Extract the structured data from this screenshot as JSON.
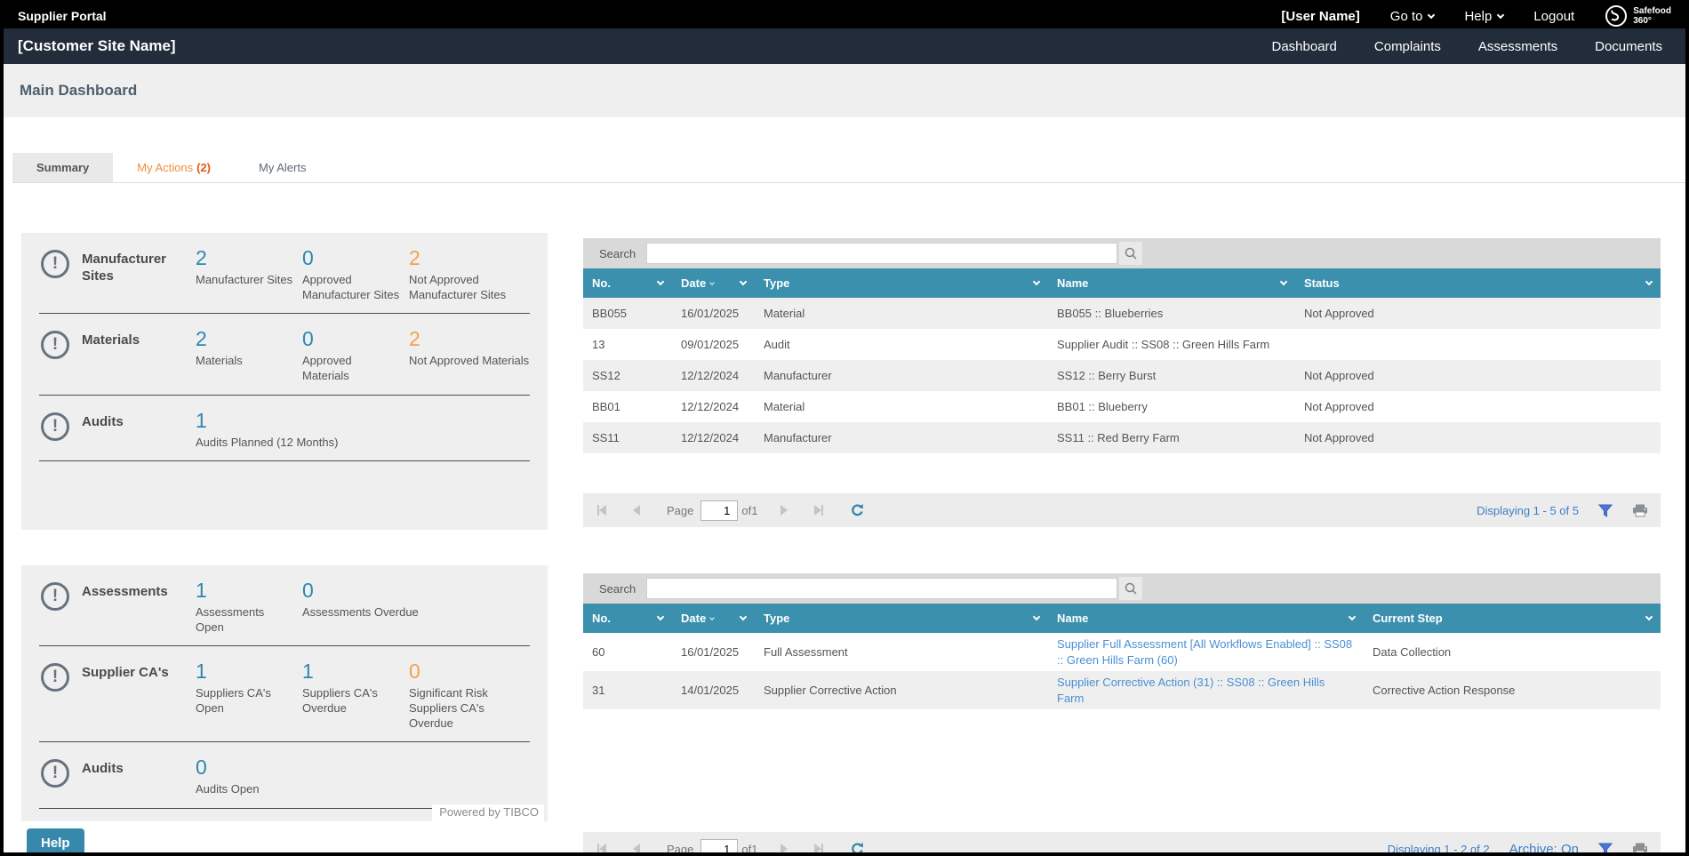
{
  "topbar": {
    "title": "Supplier Portal",
    "user": "[User Name]",
    "goto_label": "Go to",
    "help_label": "Help",
    "logout_label": "Logout",
    "brand_line1": "Safefood",
    "brand_line2": "360°"
  },
  "nav": {
    "site_name": "[Customer Site Name]",
    "items": [
      "Dashboard",
      "Complaints",
      "Assessments",
      "Documents"
    ]
  },
  "page": {
    "title": "Main Dashboard",
    "help_button": "Help"
  },
  "tabs": [
    {
      "label": "Summary",
      "active": true
    },
    {
      "label": "My Actions",
      "badge": "(2)",
      "orange": true
    },
    {
      "label": "My Alerts"
    }
  ],
  "colors": {
    "header_teal": "#3b90ae",
    "stat_blue": "#2f87ac",
    "stat_orange": "#f2a14d",
    "link_blue": "#4a90d2",
    "help_teal": "#3789ab",
    "navbar_navy": "#222c3a"
  },
  "summary_panels": [
    {
      "sections": [
        {
          "title": "Manufacturer Sites",
          "stats": [
            {
              "value": "2",
              "label": "Manufacturer Sites",
              "color": "blue"
            },
            {
              "value": "0",
              "label": "Approved Manufacturer Sites",
              "color": "blue"
            },
            {
              "value": "2",
              "label": "Not Approved Manufacturer Sites",
              "color": "orange"
            }
          ]
        },
        {
          "title": "Materials",
          "stats": [
            {
              "value": "2",
              "label": "Materials",
              "color": "blue"
            },
            {
              "value": "0",
              "label": "Approved Materials",
              "color": "blue"
            },
            {
              "value": "2",
              "label": "Not Approved Materials",
              "color": "orange"
            }
          ]
        },
        {
          "title": "Audits",
          "stats": [
            {
              "value": "1",
              "label": "Audits Planned (12 Months)",
              "color": "blue"
            }
          ]
        }
      ],
      "footer": null
    },
    {
      "sections": [
        {
          "title": "Assessments",
          "stats": [
            {
              "value": "1",
              "label": "Assessments Open",
              "color": "blue"
            },
            {
              "value": "0",
              "label": "Assessments Overdue",
              "color": "blue"
            }
          ]
        },
        {
          "title": "Supplier CA's",
          "stats": [
            {
              "value": "1",
              "label": "Suppliers CA's Open",
              "color": "blue"
            },
            {
              "value": "1",
              "label": "Suppliers CA's Overdue",
              "color": "blue"
            },
            {
              "value": "0",
              "label": "Significant Risk Suppliers CA's Overdue",
              "color": "orange"
            }
          ]
        },
        {
          "title": "Audits",
          "stats": [
            {
              "value": "0",
              "label": "Audits Open",
              "color": "blue"
            }
          ]
        }
      ],
      "footer": "Powered by TIBCO"
    }
  ],
  "tables": [
    {
      "search_label": "Search",
      "search_value": "",
      "columns": [
        {
          "label": "No.",
          "sorted": false
        },
        {
          "label": "Date",
          "sorted": true
        },
        {
          "label": "Type",
          "sorted": false
        },
        {
          "label": "Name",
          "sorted": false
        },
        {
          "label": "Status",
          "sorted": false
        }
      ],
      "name_is_link": false,
      "stripe_offset": 0,
      "rows": [
        {
          "cells": [
            "BB055",
            "16/01/2025",
            "Material",
            "BB055 :: Blueberries",
            "Not Approved"
          ]
        },
        {
          "cells": [
            "13",
            "09/01/2025",
            "Audit",
            "Supplier Audit :: SS08 :: Green Hills Farm",
            ""
          ]
        },
        {
          "cells": [
            "SS12",
            "12/12/2024",
            "Manufacturer",
            "SS12 :: Berry Burst",
            "Not Approved"
          ]
        },
        {
          "cells": [
            "BB01",
            "12/12/2024",
            "Material",
            "BB01 :: Blueberry",
            "Not Approved"
          ]
        },
        {
          "cells": [
            "SS11",
            "12/12/2024",
            "Manufacturer",
            "SS11 :: Red Berry Farm",
            "Not Approved"
          ]
        }
      ],
      "pager": {
        "page_label": "Page",
        "page_value": "1",
        "of_label": "of1",
        "displaying": "Displaying 1 - 5 of 5",
        "archive": null
      }
    },
    {
      "search_label": "Search",
      "search_value": "",
      "columns": [
        {
          "label": "No.",
          "sorted": false
        },
        {
          "label": "Date",
          "sorted": true
        },
        {
          "label": "Type",
          "sorted": false
        },
        {
          "label": "Name",
          "sorted": false
        },
        {
          "label": "Current Step",
          "sorted": false
        }
      ],
      "name_is_link": true,
      "stripe_offset": 1,
      "rows": [
        {
          "cells": [
            "60",
            "16/01/2025",
            "Full Assessment",
            "Supplier Full Assessment [All Workflows Enabled] :: SS08 :: Green Hills Farm (60)",
            "Data Collection"
          ]
        },
        {
          "cells": [
            "31",
            "14/01/2025",
            "Supplier Corrective Action",
            "Supplier Corrective Action (31) :: SS08 :: Green Hills Farm",
            "Corrective Action Response"
          ]
        }
      ],
      "pager": {
        "page_label": "Page",
        "page_value": "1",
        "of_label": "of1",
        "displaying": "Displaying 1 - 2 of 2",
        "archive": "Archive: On"
      }
    }
  ]
}
